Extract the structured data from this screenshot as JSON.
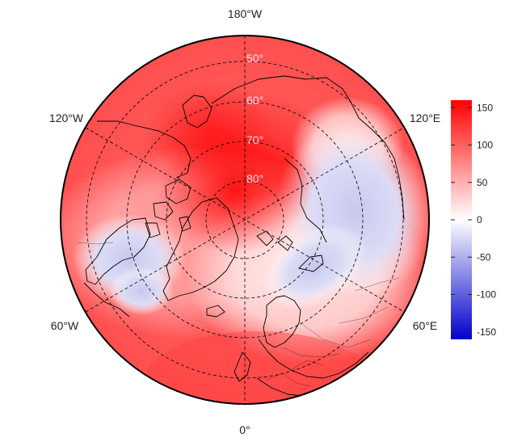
{
  "map": {
    "projection": "north-polar-stereographic",
    "longitude_labels": {
      "top": "180°W",
      "bottom": "0°",
      "upper_left": "120°W",
      "upper_right": "120°E",
      "lower_left": "60°W",
      "lower_right": "60°E"
    },
    "latitude_labels": [
      "50°",
      "60°",
      "70°",
      "80°"
    ],
    "field_description_colors": {
      "strong_positive": "#ff0000",
      "zero": "#ffffff",
      "strong_negative": "#0000cc"
    }
  },
  "colorbar": {
    "range": [
      -160,
      160
    ],
    "ticks": [
      "150",
      "100",
      "50",
      "0",
      "-50",
      "-100",
      "-150"
    ],
    "tick_values": [
      150,
      100,
      50,
      0,
      -50,
      -100,
      -150
    ],
    "colors": {
      "top": "#ff0000",
      "middle": "#ffffff",
      "bottom": "#0000cc"
    }
  }
}
